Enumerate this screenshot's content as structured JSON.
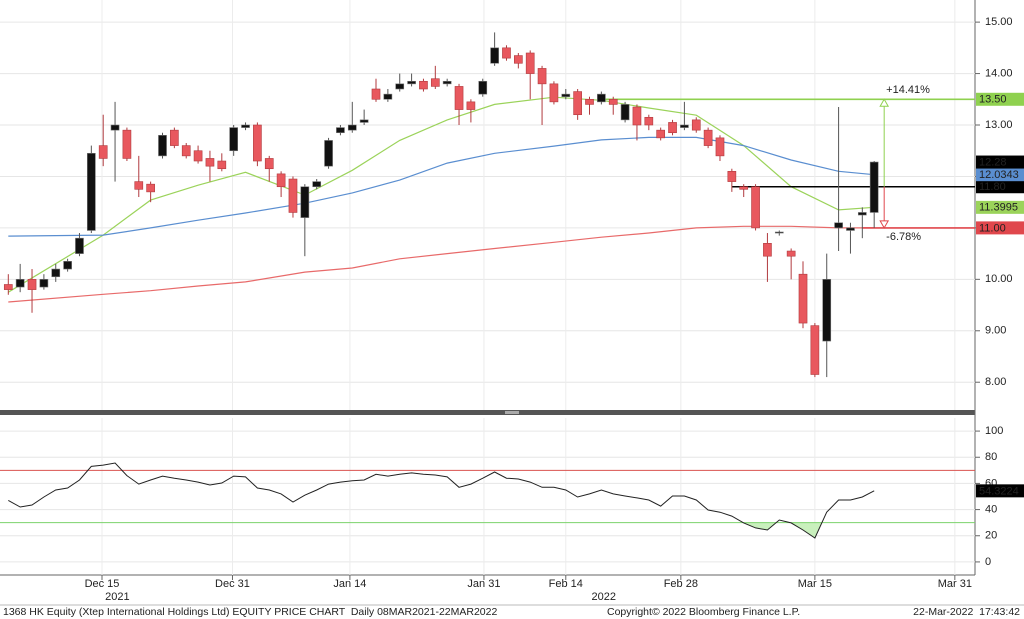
{
  "chart_data": [
    {
      "type": "candlestick",
      "x": [
        0,
        1,
        2,
        3,
        4,
        5,
        6,
        7,
        8,
        9,
        10,
        11,
        12,
        13,
        14,
        15,
        16,
        17,
        18,
        19,
        20,
        21,
        22,
        23,
        24,
        25,
        26,
        27,
        28,
        29,
        30,
        31,
        32,
        33,
        34,
        35,
        36,
        37,
        38,
        39,
        40,
        41,
        42,
        43,
        44,
        45,
        46,
        47,
        48,
        49,
        50,
        51,
        52,
        53,
        54,
        55,
        56,
        57,
        58,
        59,
        60,
        61,
        62,
        63,
        64,
        65,
        66,
        67,
        68,
        69,
        70,
        71,
        72,
        73
      ],
      "open": [
        9.9,
        9.85,
        10.0,
        9.85,
        10.05,
        10.2,
        10.5,
        10.95,
        12.6,
        12.9,
        12.9,
        11.9,
        11.85,
        12.4,
        12.9,
        12.6,
        12.5,
        12.35,
        12.3,
        12.5,
        12.95,
        13.0,
        12.35,
        12.05,
        11.95,
        11.2,
        11.8,
        12.2,
        12.85,
        12.9,
        13.05,
        13.7,
        13.5,
        13.7,
        13.8,
        13.85,
        13.9,
        13.8,
        13.75,
        13.45,
        13.6,
        14.2,
        14.5,
        14.35,
        14.4,
        14.1,
        13.8,
        13.55,
        13.65,
        13.5,
        13.45,
        13.5,
        13.1,
        13.35,
        13.15,
        12.9,
        13.05,
        12.95,
        13.1,
        12.9,
        12.75,
        12.1,
        11.8,
        11.8,
        10.7,
        10.9,
        10.55,
        10.1,
        9.1,
        8.8,
        11.0,
        10.95,
        11.25,
        11.3
      ],
      "high": [
        10.1,
        10.3,
        10.2,
        10.1,
        10.3,
        10.4,
        10.9,
        12.6,
        13.2,
        13.45,
        12.95,
        12.4,
        11.9,
        12.85,
        12.95,
        12.65,
        12.6,
        12.5,
        12.45,
        13.0,
        13.05,
        13.05,
        12.4,
        12.1,
        12.0,
        11.85,
        11.95,
        12.75,
        13.0,
        13.45,
        13.3,
        13.9,
        13.7,
        14.0,
        14.0,
        13.9,
        14.15,
        13.9,
        13.8,
        13.5,
        13.9,
        14.8,
        14.55,
        14.4,
        14.45,
        14.15,
        13.85,
        13.7,
        13.7,
        13.55,
        13.65,
        13.55,
        13.45,
        13.4,
        13.2,
        12.95,
        13.1,
        13.45,
        13.15,
        12.95,
        12.8,
        12.15,
        11.85,
        11.85,
        10.9,
        10.95,
        10.6,
        10.35,
        9.15,
        10.5,
        13.35,
        11.1,
        11.4,
        12.3
      ],
      "low": [
        9.7,
        9.75,
        9.35,
        9.8,
        9.95,
        10.15,
        10.45,
        10.9,
        12.2,
        11.9,
        12.3,
        11.6,
        11.5,
        12.35,
        12.55,
        12.35,
        12.25,
        11.9,
        12.1,
        12.4,
        12.9,
        12.2,
        11.9,
        11.6,
        11.2,
        10.45,
        11.75,
        12.15,
        12.8,
        12.85,
        13.0,
        13.45,
        13.45,
        13.65,
        13.75,
        13.65,
        13.7,
        13.75,
        13.0,
        13.05,
        13.55,
        14.15,
        14.25,
        14.1,
        13.5,
        13.0,
        13.4,
        13.5,
        13.1,
        13.2,
        13.4,
        13.2,
        13.05,
        12.7,
        12.9,
        12.7,
        12.8,
        12.9,
        12.85,
        12.55,
        12.3,
        11.7,
        11.6,
        10.95,
        9.95,
        10.85,
        10.0,
        9.05,
        8.1,
        8.1,
        10.55,
        10.5,
        10.8,
        11.0
      ],
      "close": [
        9.8,
        10.0,
        9.8,
        10.0,
        10.2,
        10.35,
        10.8,
        12.45,
        12.35,
        13.0,
        12.35,
        11.75,
        11.7,
        12.8,
        12.6,
        12.4,
        12.3,
        12.2,
        12.15,
        12.95,
        13.0,
        12.3,
        12.15,
        11.8,
        11.3,
        11.8,
        11.9,
        12.7,
        12.95,
        13.0,
        13.1,
        13.5,
        13.6,
        13.8,
        13.85,
        13.7,
        13.75,
        13.85,
        13.3,
        13.3,
        13.85,
        14.5,
        14.3,
        14.2,
        14.0,
        13.8,
        13.45,
        13.6,
        13.2,
        13.4,
        13.6,
        13.4,
        13.4,
        13.0,
        13.0,
        12.75,
        12.85,
        13.0,
        12.9,
        12.6,
        12.4,
        11.9,
        11.75,
        11.0,
        10.45,
        10.92,
        10.45,
        9.15,
        8.15,
        10.0,
        11.1,
        11.0,
        11.3,
        12.28
      ],
      "up_color": "#111111",
      "down_color": "#e8585e",
      "last_label": "12.28",
      "xlim": [
        -0.7,
        81.5
      ],
      "ylim": [
        7.46,
        15.43
      ],
      "yticks": [
        {
          "value": 8,
          "label": "8.00"
        },
        {
          "value": 9,
          "label": "9.00"
        },
        {
          "value": 10,
          "label": "10.00"
        },
        {
          "value": 11,
          "label": "11.00"
        },
        {
          "value": 12,
          "label": "12.00"
        },
        {
          "value": 13,
          "label": "13.00"
        },
        {
          "value": 14,
          "label": "14.00"
        },
        {
          "value": 15,
          "label": "15.00"
        }
      ],
      "grid": true,
      "series": [
        {
          "color": "#9bd35a",
          "x": [
            0,
            8,
            12,
            16,
            20,
            25,
            29,
            33,
            37,
            41,
            46,
            50,
            54,
            58,
            62,
            66,
            70,
            73
          ],
          "values": [
            9.75,
            10.86,
            11.54,
            11.83,
            12.08,
            11.64,
            12.12,
            12.7,
            13.1,
            13.4,
            13.54,
            13.48,
            13.33,
            13.19,
            12.6,
            11.8,
            11.35,
            11.3995
          ],
          "last_label": "11.3995"
        },
        {
          "color": "#5a8ed0",
          "x": [
            0,
            8,
            12,
            16,
            20,
            25,
            29,
            33,
            37,
            41,
            46,
            50,
            54,
            58,
            62,
            66,
            70,
            73
          ],
          "values": [
            10.84,
            10.86,
            11.0,
            11.15,
            11.29,
            11.48,
            11.68,
            11.93,
            12.26,
            12.45,
            12.59,
            12.71,
            12.76,
            12.76,
            12.6,
            12.32,
            12.1,
            12.0343
          ],
          "last_label": "12.0343"
        },
        {
          "color": "#e86a6a",
          "x": [
            0,
            8,
            12,
            16,
            20,
            25,
            29,
            33,
            37,
            41,
            46,
            50,
            54,
            58,
            62,
            66,
            70,
            73
          ],
          "values": [
            9.56,
            9.71,
            9.78,
            9.87,
            9.95,
            10.14,
            10.22,
            10.4,
            10.5,
            10.6,
            10.72,
            10.82,
            10.9,
            11.0,
            11.03,
            11.03,
            11.0,
            11.0
          ]
        }
      ],
      "hlines": [
        {
          "value": 13.5,
          "label": "13.50",
          "color": "#8fd14f",
          "start_x": 50,
          "annotation": "+14.41%"
        },
        {
          "value": 11.8,
          "label": "11.80",
          "color": "#000000",
          "start_x": 61
        },
        {
          "value": 11,
          "label": "11.00",
          "color": "#e0474c",
          "start_x": 72,
          "annotation": "-6.78%"
        }
      ]
    },
    {
      "type": "line",
      "x": [
        0,
        1,
        2,
        3,
        4,
        5,
        6,
        7,
        8,
        9,
        10,
        11,
        12,
        13,
        14,
        15,
        16,
        17,
        18,
        19,
        20,
        21,
        22,
        23,
        24,
        25,
        26,
        27,
        28,
        29,
        30,
        31,
        32,
        33,
        34,
        35,
        36,
        37,
        38,
        39,
        40,
        41,
        42,
        43,
        44,
        45,
        46,
        47,
        48,
        49,
        50,
        51,
        52,
        53,
        54,
        55,
        56,
        57,
        58,
        59,
        60,
        61,
        62,
        63,
        64,
        65,
        66,
        67,
        68,
        69,
        70,
        71,
        72,
        73
      ],
      "values": [
        47,
        42,
        43.5,
        49.6,
        55,
        56.5,
        62.6,
        73,
        74,
        75.6,
        66,
        59.5,
        62.6,
        65.6,
        64,
        62.6,
        61,
        58.8,
        60.3,
        65.6,
        65,
        56.5,
        55,
        52,
        45.8,
        51,
        55,
        59.5,
        61,
        62,
        62.6,
        67,
        65.6,
        67,
        68,
        67,
        66.4,
        65,
        57,
        59.5,
        64,
        68.7,
        64,
        63.4,
        61,
        57,
        57,
        55,
        49.6,
        52,
        55,
        52,
        50.4,
        48.9,
        47.3,
        42.7,
        50.4,
        50.4,
        47.3,
        39.7,
        38,
        35,
        29.8,
        26,
        24.4,
        32,
        29.8,
        24.4,
        18.3,
        38,
        47.3,
        47.3,
        49.6,
        54.3224
      ],
      "color": "#222222",
      "last_label": "54.3224",
      "xlim": [
        -0.7,
        81.5
      ],
      "ylim": [
        -10,
        110
      ],
      "yticks": [
        0,
        20,
        40,
        60,
        80,
        100
      ],
      "xticks": [
        {
          "value": 7.9,
          "label": "Dec 15"
        },
        {
          "value": 18.9,
          "label": "Dec 31"
        },
        {
          "value": 28.8,
          "label": "Jan 14"
        },
        {
          "value": 40.1,
          "label": "Jan 31"
        },
        {
          "value": 47.0,
          "label": "Feb 14"
        },
        {
          "value": 56.7,
          "label": "Feb 28"
        },
        {
          "value": 68.0,
          "label": "Mar 15"
        },
        {
          "value": 79.8,
          "label": "Mar 31"
        }
      ],
      "year_ticks": [
        {
          "value": 9.2,
          "label": "2021"
        },
        {
          "value": 50.2,
          "label": "2022"
        }
      ],
      "grid": true,
      "hlines": [
        {
          "value": 70,
          "color": "#d9534f"
        },
        {
          "value": 30,
          "color": "#7cd36b",
          "fill": "#c9f0bd"
        }
      ]
    }
  ],
  "footer": {
    "left": "1368 HK Equity (Xtep International Holdings Ltd) EQUITY PRICE CHART  Daily 08MAR2021-22MAR2022",
    "center": "Copyright© 2022 Bloomberg Finance L.P.",
    "right": "22-Mar-2022  17:43:42"
  }
}
